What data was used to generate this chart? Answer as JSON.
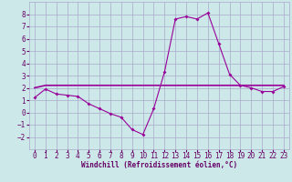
{
  "xlabel": "Windchill (Refroidissement éolien,°C)",
  "line1_x": [
    0,
    1,
    2,
    3,
    4,
    5,
    6,
    7,
    8,
    9,
    10,
    11,
    12,
    13,
    14,
    15,
    16,
    17,
    18,
    19,
    20,
    21,
    22,
    23
  ],
  "line1_y": [
    1.2,
    1.9,
    1.5,
    1.4,
    1.3,
    0.7,
    0.3,
    -0.1,
    -0.4,
    -1.4,
    -1.8,
    0.3,
    3.3,
    7.6,
    7.8,
    7.6,
    8.1,
    5.6,
    3.1,
    2.2,
    2.0,
    1.7,
    1.7,
    2.1
  ],
  "line2_x": [
    0,
    1,
    2,
    3,
    4,
    5,
    6,
    7,
    8,
    9,
    10,
    11,
    12,
    13,
    14,
    15,
    16,
    17,
    18,
    19,
    20,
    21,
    22,
    23
  ],
  "line2_y": [
    2.0,
    2.2,
    2.2,
    2.2,
    2.2,
    2.2,
    2.2,
    2.2,
    2.2,
    2.2,
    2.2,
    2.2,
    2.2,
    2.2,
    2.2,
    2.2,
    2.2,
    2.2,
    2.2,
    2.2,
    2.2,
    2.2,
    2.2,
    2.2
  ],
  "line_color": "#990099",
  "bg_color": "#cce8e8",
  "grid_color": "#aaaacc",
  "text_color": "#660066",
  "ylim": [
    -3,
    9
  ],
  "xlim": [
    -0.5,
    23.5
  ],
  "yticks": [
    -2,
    -1,
    0,
    1,
    2,
    3,
    4,
    5,
    6,
    7,
    8
  ],
  "xticks": [
    0,
    1,
    2,
    3,
    4,
    5,
    6,
    7,
    8,
    9,
    10,
    11,
    12,
    13,
    14,
    15,
    16,
    17,
    18,
    19,
    20,
    21,
    22,
    23
  ],
  "tick_fontsize": 5.5,
  "xlabel_fontsize": 5.5
}
